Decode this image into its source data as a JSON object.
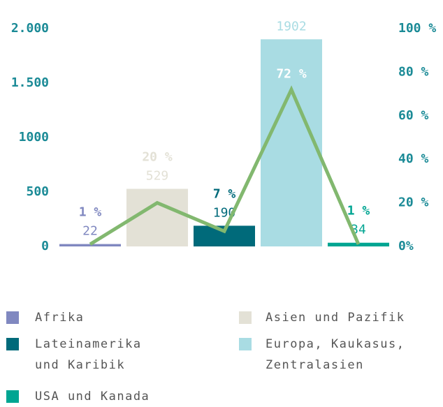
{
  "chart_data": {
    "type": "combo",
    "categories": [
      "Afrika",
      "Asien und Pazifik",
      "Lateinamerika und Karibik",
      "Europa, Kaukasus, Zentralasien",
      "USA und Kanada"
    ],
    "colors": [
      "#8088c0",
      "#e3e1d6",
      "#006a7a",
      "#a9dce3",
      "#00a592"
    ],
    "series": [
      {
        "type": "bar",
        "values": [
          22,
          529,
          190,
          1902,
          34
        ]
      },
      {
        "type": "line",
        "axis": "y2",
        "color": "#82b86f",
        "values": [
          1,
          20,
          7,
          72,
          1
        ],
        "value_labels": [
          "1 %",
          "20 %",
          "7 %",
          "72 %",
          "1 %"
        ]
      }
    ],
    "ylim": [
      0,
      2000
    ],
    "yticks": [
      0,
      500,
      1000,
      {
        "value": 1500,
        "label": "1.500"
      },
      {
        "value": 2000,
        "label": "2.000"
      }
    ],
    "y2lim": [
      0,
      100
    ],
    "y2ticks": [
      {
        "value": 0,
        "label": "0%"
      },
      {
        "value": 20,
        "label": "20 %"
      },
      {
        "value": 40,
        "label": "40 %"
      },
      {
        "value": 60,
        "label": "60 %"
      },
      {
        "value": 80,
        "label": "80 %"
      },
      {
        "value": 100,
        "label": "100 %"
      }
    ]
  }
}
